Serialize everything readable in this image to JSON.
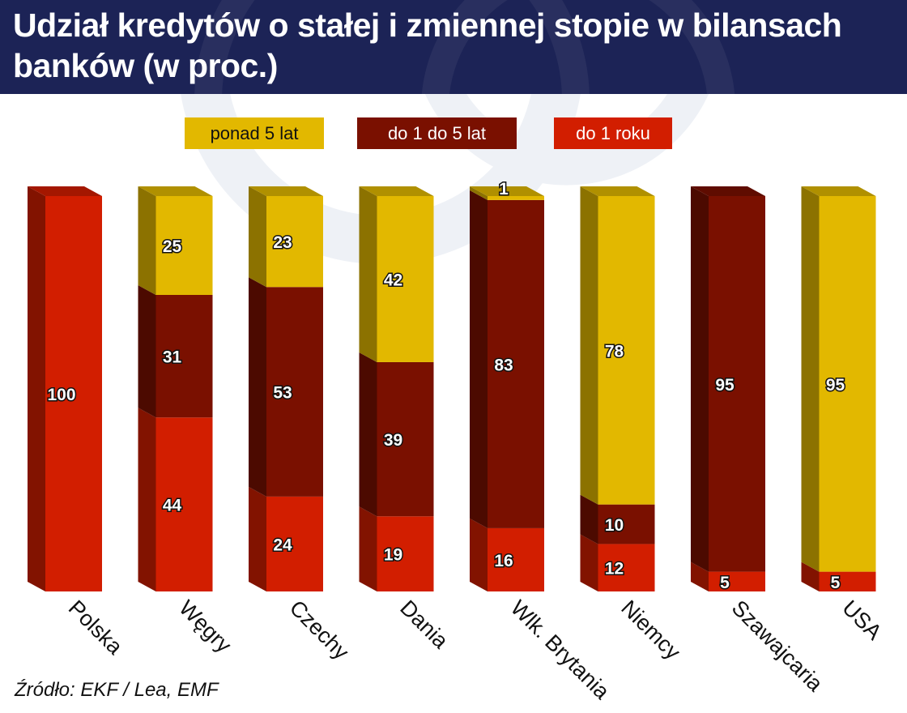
{
  "title": "Udział kredytów o stałej i zmiennej stopie w bilansach banków (w proc.)",
  "source": "Źródło: EKF / Lea, EMF",
  "colors": {
    "header_bg": "#1c2356",
    "ponad5": "#e2b800",
    "do1do5": "#7a1000",
    "do1roku": "#d21e00"
  },
  "chart_data": {
    "type": "bar",
    "stacked": true,
    "three_d": true,
    "categories": [
      "Polska",
      "Węgry",
      "Czechy",
      "Dania",
      "Wlk. Brytania",
      "Niemcy",
      "Szawajcaria",
      "USA"
    ],
    "series": [
      {
        "name": "do 1 roku",
        "color": "#d21e00",
        "values": [
          100,
          44,
          24,
          19,
          16,
          12,
          5,
          5
        ]
      },
      {
        "name": "do 1 do 5 lat",
        "color": "#7a1000",
        "values": [
          0,
          31,
          53,
          39,
          83,
          10,
          95,
          0
        ]
      },
      {
        "name": "ponad 5 lat",
        "color": "#e2b800",
        "values": [
          0,
          25,
          23,
          42,
          1,
          78,
          0,
          95
        ]
      }
    ],
    "legend_order": [
      "ponad 5 lat",
      "do 1 do 5 lat",
      "do 1 roku"
    ],
    "legend_position": "top",
    "ylim": [
      0,
      100
    ],
    "grid": false,
    "data_labels": true,
    "category_label_rotation": 45
  }
}
